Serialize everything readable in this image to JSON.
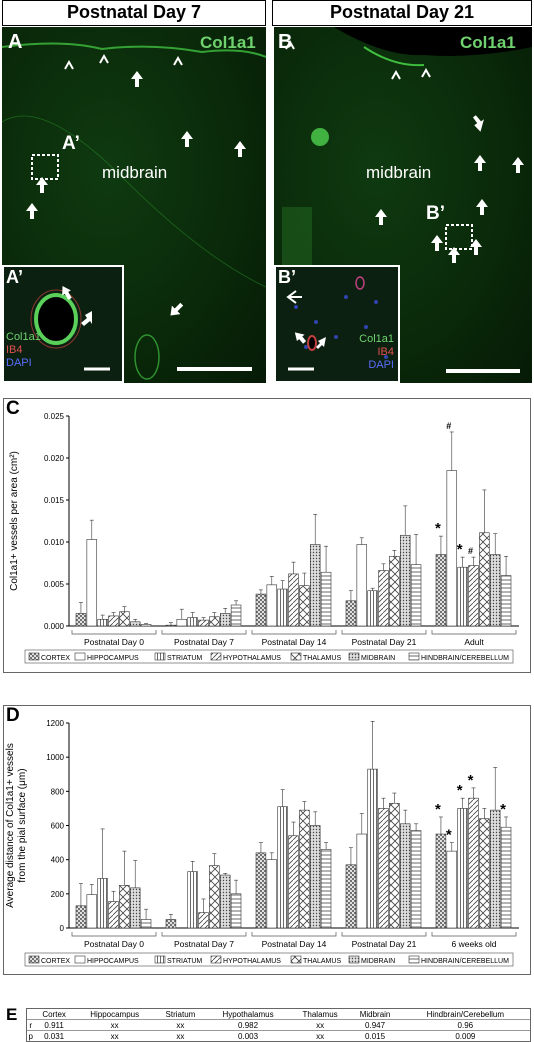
{
  "panels": {
    "header_left": "Postnatal Day 7",
    "header_right": "Postnatal Day 21",
    "A": {
      "label": "A",
      "stain": "Col1a1",
      "region": "midbrain",
      "inset_ref": "A’",
      "inset": {
        "label": "A’",
        "l1": "Col1a1",
        "l2": "IB4",
        "l3": "DAPI"
      }
    },
    "B": {
      "label": "B",
      "stain": "Col1a1",
      "region": "midbrain",
      "inset_ref": "B’",
      "inset": {
        "label": "B’",
        "l1": "Col1a1",
        "l2": "IB4",
        "l3": "DAPI"
      }
    }
  },
  "colors": {
    "green": "#6fd26f",
    "red": "#e05050",
    "blue": "#5a6cff"
  },
  "chart_data": [
    {
      "label": "C",
      "type": "bar",
      "ylabel": "Col1a1+ vessels per area (cm²)",
      "ylim": [
        0,
        0.025
      ],
      "yticks": [
        "0.000",
        "0.005",
        "0.010",
        "0.015",
        "0.020",
        "0.025"
      ],
      "groups": [
        "Postnatal Day 0",
        "Postnatal Day 7",
        "Postnatal Day 14",
        "Postnatal Day 21",
        "Adult"
      ],
      "series": [
        {
          "name": "CORTEX",
          "values": [
            0.0015,
            0.0001,
            0.0038,
            0.003,
            0.0085
          ],
          "errors": [
            0.0013,
            0.0003,
            0.0005,
            0.0012,
            0.0022
          ]
        },
        {
          "name": "HIPPOCAMPUS",
          "values": [
            0.0103,
            0.0008,
            0.0049,
            0.0097,
            0.0185
          ],
          "errors": [
            0.0023,
            0.0012,
            0.001,
            0.0008,
            0.0046
          ]
        },
        {
          "name": "STRIATUM",
          "values": [
            0.0008,
            0.001,
            0.0044,
            0.0042,
            0.007
          ],
          "errors": [
            0.0005,
            0.0006,
            0.001,
            0.0003,
            0.0012
          ]
        },
        {
          "name": "HYPOTHALAMUS",
          "values": [
            0.0012,
            0.0007,
            0.0062,
            0.0066,
            0.0072
          ],
          "errors": [
            0.0004,
            0.0003,
            0.0014,
            0.0008,
            0.001
          ]
        },
        {
          "name": "THALAMUS",
          "values": [
            0.0017,
            0.0011,
            0.0048,
            0.0083,
            0.0111
          ],
          "errors": [
            0.0006,
            0.0005,
            0.0015,
            0.0007,
            0.0051
          ]
        },
        {
          "name": "MIDBRAIN",
          "values": [
            0.0005,
            0.0015,
            0.0097,
            0.0108,
            0.0085
          ],
          "errors": [
            0.0003,
            0.0006,
            0.0036,
            0.0035,
            0.0025
          ]
        },
        {
          "name": "HINDBRAIN/CEREBELLUM",
          "values": [
            0.0002,
            0.0025,
            0.0064,
            0.0073,
            0.006
          ],
          "errors": [
            0.0001,
            0.0005,
            0.0031,
            0.0036,
            0.0023
          ]
        }
      ],
      "annotations": [
        {
          "group": 4,
          "series": 0,
          "text": "*"
        },
        {
          "group": 4,
          "series": 1,
          "text": "#"
        },
        {
          "group": 4,
          "series": 2,
          "text": "*"
        },
        {
          "group": 4,
          "series": 3,
          "text": "#"
        }
      ]
    },
    {
      "label": "D",
      "type": "bar",
      "ylabel": "Average distance of Col1a1+ vessels from the pial surface (μm)",
      "ylim": [
        0,
        1200
      ],
      "yticks": [
        "0",
        "200",
        "400",
        "600",
        "800",
        "1000",
        "1200"
      ],
      "groups": [
        "Postnatal Day 0",
        "Postnatal Day 7",
        "Postnatal Day 14",
        "Postnatal Day 21",
        "6 weeks old"
      ],
      "series": [
        {
          "name": "CORTEX",
          "values": [
            130,
            50,
            440,
            370,
            550
          ],
          "errors": [
            130,
            30,
            60,
            100,
            100
          ]
        },
        {
          "name": "HIPPOCAMPUS",
          "values": [
            195,
            0,
            400,
            550,
            450
          ],
          "errors": [
            60,
            0,
            40,
            120,
            50
          ]
        },
        {
          "name": "STRIATUM",
          "values": [
            290,
            330,
            710,
            930,
            700
          ],
          "errors": [
            290,
            60,
            100,
            280,
            60
          ]
        },
        {
          "name": "HYPOTHALAMUS",
          "values": [
            155,
            90,
            540,
            700,
            760
          ],
          "errors": [
            60,
            80,
            80,
            60,
            60
          ]
        },
        {
          "name": "THALAMUS",
          "values": [
            250,
            365,
            690,
            730,
            640
          ],
          "errors": [
            200,
            70,
            50,
            60,
            60
          ]
        },
        {
          "name": "MIDBRAIN",
          "values": [
            235,
            310,
            600,
            610,
            690
          ],
          "errors": [
            160,
            10,
            80,
            80,
            250
          ]
        },
        {
          "name": "HINDBRAIN/CEREBELLUM",
          "values": [
            50,
            200,
            460,
            570,
            590
          ],
          "errors": [
            60,
            80,
            40,
            40,
            60
          ]
        }
      ],
      "annotations": [
        {
          "group": 4,
          "series": 0,
          "text": "*"
        },
        {
          "group": 4,
          "series": 1,
          "text": "*"
        },
        {
          "group": 4,
          "series": 2,
          "text": "*"
        },
        {
          "group": 4,
          "series": 3,
          "text": "*"
        },
        {
          "group": 4,
          "series": 6,
          "text": "*"
        }
      ]
    }
  ],
  "table": {
    "label": "E",
    "header": [
      "",
      "Cortex",
      "Hippocampus",
      "Striatum",
      "Hypothalamus",
      "Thalamus",
      "Midbrain",
      "Hindbrain/Cerebellum"
    ],
    "rows": [
      [
        "r",
        "0.911",
        "xx",
        "xx",
        "0.982",
        "xx",
        "0.947",
        "0.96"
      ],
      [
        "p",
        "0.031",
        "xx",
        "xx",
        "0.003",
        "xx",
        "0.015",
        "0.009"
      ]
    ]
  }
}
